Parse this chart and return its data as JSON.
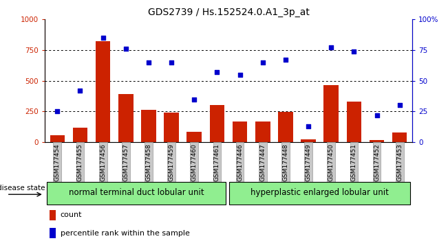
{
  "title": "GDS2739 / Hs.152524.0.A1_3p_at",
  "samples": [
    "GSM177454",
    "GSM177455",
    "GSM177456",
    "GSM177457",
    "GSM177458",
    "GSM177459",
    "GSM177460",
    "GSM177461",
    "GSM177446",
    "GSM177447",
    "GSM177448",
    "GSM177449",
    "GSM177450",
    "GSM177451",
    "GSM177452",
    "GSM177453"
  ],
  "bar_values": [
    55,
    120,
    820,
    390,
    265,
    240,
    85,
    300,
    170,
    170,
    248,
    25,
    465,
    330,
    20,
    80
  ],
  "scatter_values": [
    25,
    42,
    85,
    76,
    65,
    65,
    35,
    57,
    55,
    65,
    67,
    13,
    77,
    74,
    22,
    30
  ],
  "group1_label": "normal terminal duct lobular unit",
  "group2_label": "hyperplastic enlarged lobular unit",
  "group1_count": 8,
  "group2_count": 8,
  "bar_color": "#cc2200",
  "scatter_color": "#0000cc",
  "ylim_left": [
    0,
    1000
  ],
  "ylim_right": [
    0,
    100
  ],
  "yticks_left": [
    0,
    250,
    500,
    750,
    1000
  ],
  "yticks_right": [
    0,
    25,
    50,
    75,
    100
  ],
  "ytick_labels_left": [
    "0",
    "250",
    "500",
    "750",
    "1000"
  ],
  "ytick_labels_right": [
    "0",
    "25",
    "50",
    "75",
    "100%"
  ],
  "legend_count_label": "count",
  "legend_pct_label": "percentile rank within the sample",
  "disease_state_label": "disease state",
  "group_bg_color": "#90ee90",
  "xticklabel_bg": "#c8c8c8",
  "title_fontsize": 10,
  "tick_fontsize": 7.5,
  "xtick_fontsize": 6.5,
  "legend_fontsize": 8,
  "group_label_fontsize": 8.5,
  "disease_state_fontsize": 7.5
}
